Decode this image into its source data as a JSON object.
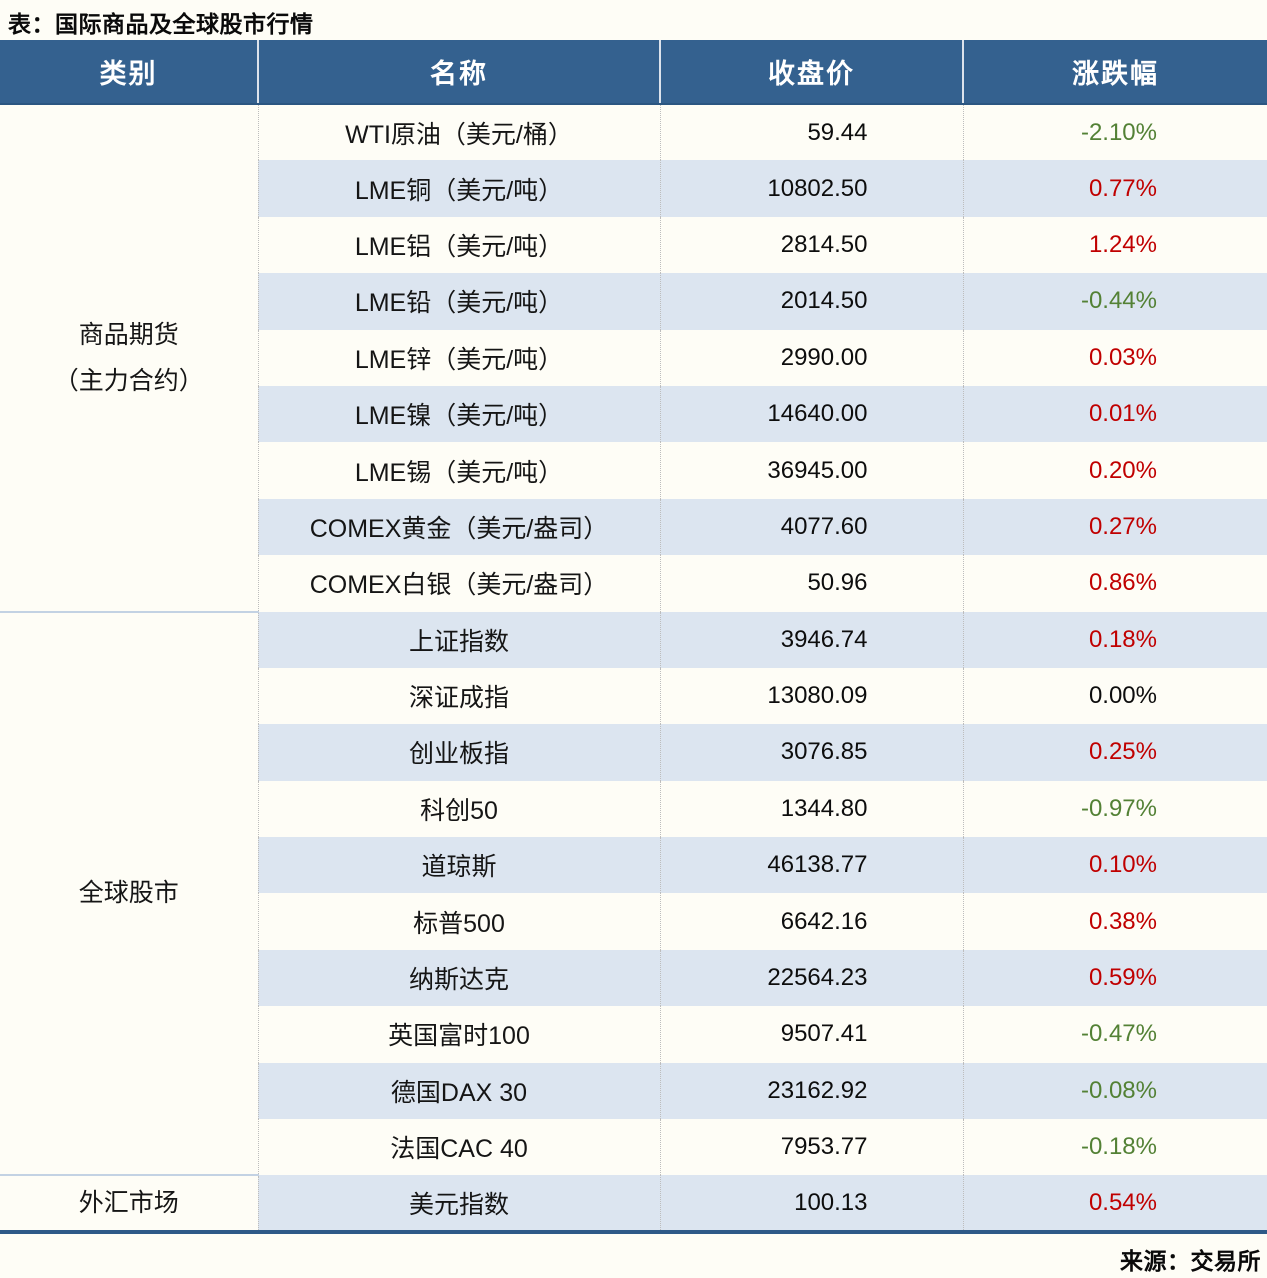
{
  "title": "表：国际商品及全球股市行情",
  "source": "来源：交易所",
  "colors": {
    "header_bg": "#34618F",
    "row_bg": "#FEFDF6",
    "row_alt_bg": "#DCE5F0",
    "up_red": "#C00000",
    "down_green": "#538135",
    "flat_black": "#0D0D0D",
    "bottom_rule": "#2E5A88",
    "cat_divider": "#C3D2E3"
  },
  "table": {
    "headers": [
      "类别",
      "名称",
      "收盘价",
      "涨跌幅"
    ],
    "sections": [
      {
        "category": "商品期货（主力合约）",
        "category_lines": [
          "商品期货",
          "（主力合约）"
        ],
        "rows": [
          {
            "name": "WTI原油（美元/桶）",
            "close": "59.44",
            "change": "-2.10%",
            "direction": "down"
          },
          {
            "name": "LME铜（美元/吨）",
            "close": "10802.50",
            "change": "0.77%",
            "direction": "up"
          },
          {
            "name": "LME铝（美元/吨）",
            "close": "2814.50",
            "change": "1.24%",
            "direction": "up"
          },
          {
            "name": "LME铅（美元/吨）",
            "close": "2014.50",
            "change": "-0.44%",
            "direction": "down"
          },
          {
            "name": "LME锌（美元/吨）",
            "close": "2990.00",
            "change": "0.03%",
            "direction": "up"
          },
          {
            "name": "LME镍（美元/吨）",
            "close": "14640.00",
            "change": "0.01%",
            "direction": "up"
          },
          {
            "name": "LME锡（美元/吨）",
            "close": "36945.00",
            "change": "0.20%",
            "direction": "up"
          },
          {
            "name": "COMEX黄金（美元/盎司）",
            "close": "4077.60",
            "change": "0.27%",
            "direction": "up"
          },
          {
            "name": "COMEX白银（美元/盎司）",
            "close": "50.96",
            "change": "0.86%",
            "direction": "up"
          }
        ]
      },
      {
        "category": "全球股市",
        "category_lines": [
          "全球股市"
        ],
        "rows": [
          {
            "name": "上证指数",
            "close": "3946.74",
            "change": "0.18%",
            "direction": "up"
          },
          {
            "name": "深证成指",
            "close": "13080.09",
            "change": "0.00%",
            "direction": "flat"
          },
          {
            "name": "创业板指",
            "close": "3076.85",
            "change": "0.25%",
            "direction": "up"
          },
          {
            "name": "科创50",
            "close": "1344.80",
            "change": "-0.97%",
            "direction": "down"
          },
          {
            "name": "道琼斯",
            "close": "46138.77",
            "change": "0.10%",
            "direction": "up"
          },
          {
            "name": "标普500",
            "close": "6642.16",
            "change": "0.38%",
            "direction": "up"
          },
          {
            "name": "纳斯达克",
            "close": "22564.23",
            "change": "0.59%",
            "direction": "up"
          },
          {
            "name": "英国富时100",
            "close": "9507.41",
            "change": "-0.47%",
            "direction": "down"
          },
          {
            "name": "德国DAX 30",
            "close": "23162.92",
            "change": "-0.08%",
            "direction": "down"
          },
          {
            "name": "法国CAC 40",
            "close": "7953.77",
            "change": "-0.18%",
            "direction": "down"
          }
        ]
      },
      {
        "category": "外汇市场",
        "category_lines": [
          "外汇市场"
        ],
        "rows": [
          {
            "name": "美元指数",
            "close": "100.13",
            "change": "0.54%",
            "direction": "up"
          }
        ]
      }
    ]
  },
  "chart_data": {
    "type": "table",
    "title": "表：国际商品及全球股市行情",
    "columns": [
      "类别",
      "名称",
      "收盘价",
      "涨跌幅"
    ],
    "rows": [
      [
        "商品期货（主力合约）",
        "WTI原油（美元/桶）",
        59.44,
        "-2.10%"
      ],
      [
        "商品期货（主力合约）",
        "LME铜（美元/吨）",
        10802.5,
        "0.77%"
      ],
      [
        "商品期货（主力合约）",
        "LME铝（美元/吨）",
        2814.5,
        "1.24%"
      ],
      [
        "商品期货（主力合约）",
        "LME铅（美元/吨）",
        2014.5,
        "-0.44%"
      ],
      [
        "商品期货（主力合约）",
        "LME锌（美元/吨）",
        2990.0,
        "0.03%"
      ],
      [
        "商品期货（主力合约）",
        "LME镍（美元/吨）",
        14640.0,
        "0.01%"
      ],
      [
        "商品期货（主力合约）",
        "LME锡（美元/吨）",
        36945.0,
        "0.20%"
      ],
      [
        "商品期货（主力合约）",
        "COMEX黄金（美元/盎司）",
        4077.6,
        "0.27%"
      ],
      [
        "商品期货（主力合约）",
        "COMEX白银（美元/盎司）",
        50.96,
        "0.86%"
      ],
      [
        "全球股市",
        "上证指数",
        3946.74,
        "0.18%"
      ],
      [
        "全球股市",
        "深证成指",
        13080.09,
        "0.00%"
      ],
      [
        "全球股市",
        "创业板指",
        3076.85,
        "0.25%"
      ],
      [
        "全球股市",
        "科创50",
        1344.8,
        "-0.97%"
      ],
      [
        "全球股市",
        "道琼斯",
        46138.77,
        "0.10%"
      ],
      [
        "全球股市",
        "标普500",
        6642.16,
        "0.38%"
      ],
      [
        "全球股市",
        "纳斯达克",
        22564.23,
        "0.59%"
      ],
      [
        "全球股市",
        "英国富时100",
        9507.41,
        "-0.47%"
      ],
      [
        "全球股市",
        "德国DAX 30",
        23162.92,
        "-0.08%"
      ],
      [
        "全球股市",
        "法国CAC 40",
        7953.77,
        "-0.18%"
      ],
      [
        "外汇市场",
        "美元指数",
        100.13,
        "0.54%"
      ]
    ],
    "source": "来源：交易所",
    "style_notes": "positive change = red, negative change = green, zero = black"
  }
}
